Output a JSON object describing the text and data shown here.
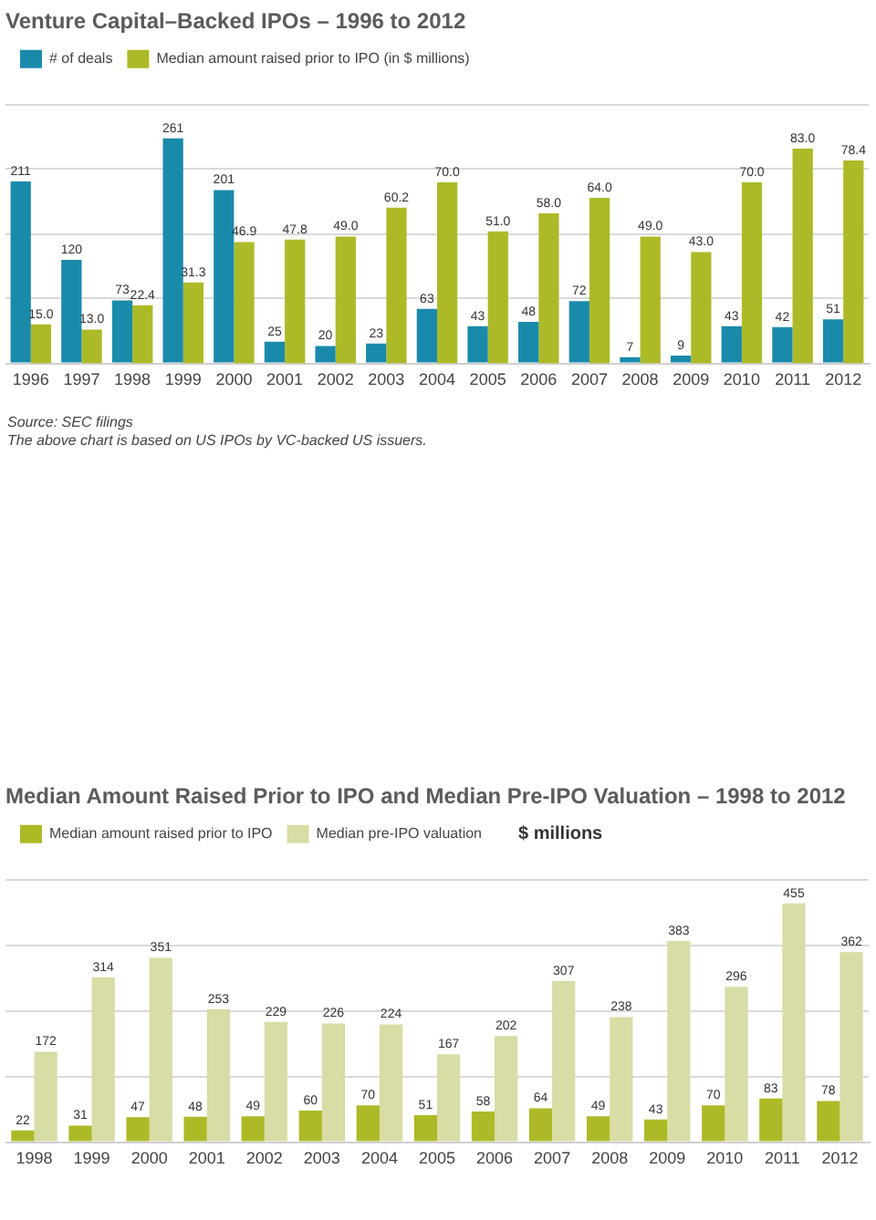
{
  "chart_data": [
    {
      "type": "bar",
      "title": "Venture Capital–Backed IPOs – 1996 to 2012",
      "categories": [
        "1996",
        "1997",
        "1998",
        "1999",
        "2000",
        "2001",
        "2002",
        "2003",
        "2004",
        "2005",
        "2006",
        "2007",
        "2008",
        "2009",
        "2010",
        "2011",
        "2012"
      ],
      "series": [
        {
          "name": "# of deals",
          "color": "#1a8aab",
          "values": [
            211,
            120,
            73,
            261,
            201,
            25,
            20,
            23,
            63,
            43,
            48,
            72,
            7,
            9,
            43,
            42,
            51
          ],
          "value_labels": [
            "211",
            "120",
            "73",
            "261",
            "201",
            "25",
            "20",
            "23",
            "63",
            "43",
            "48",
            "72",
            "7",
            "9",
            "43",
            "42",
            "51"
          ]
        },
        {
          "name": "Median amount raised prior to IPO (in $ millions)",
          "color": "#acba27",
          "axis": "y2",
          "values": [
            15.0,
            13.0,
            22.4,
            31.3,
            46.9,
            47.8,
            49.0,
            60.2,
            70.0,
            51.0,
            58.0,
            64.0,
            49.0,
            43.0,
            70.0,
            83.0,
            78.4
          ],
          "value_labels": [
            "15.0",
            "13.0",
            "22.4",
            "31.3",
            "46.9",
            "47.8",
            "49.0",
            "60.2",
            "70.0",
            "51.0",
            "58.0",
            "64.0",
            "49.0",
            "43.0",
            "70.0",
            "83.0",
            "78.4"
          ]
        }
      ],
      "ylim": [
        0,
        300
      ],
      "yticks": [
        0,
        75,
        150,
        225,
        300
      ],
      "y2lim": [
        0,
        100
      ],
      "grid": "y",
      "legend": "top left",
      "tick_labels": "x",
      "annotations": [
        "Source: SEC filings",
        "The above chart is based on US IPOs by VC-backed US issuers."
      ]
    },
    {
      "type": "bar",
      "title": "Median Amount Raised Prior to IPO and Median Pre-IPO Valuation – 1998 to 2012",
      "ylabel": "$ millions",
      "categories": [
        "1998",
        "1999",
        "2000",
        "2001",
        "2002",
        "2003",
        "2004",
        "2005",
        "2006",
        "2007",
        "2008",
        "2009",
        "2010",
        "2011",
        "2012"
      ],
      "series": [
        {
          "name": "Median amount raised prior to IPO",
          "color": "#acba27",
          "values": [
            22,
            31,
            47,
            48,
            49,
            60,
            70,
            51,
            58,
            64,
            49,
            43,
            70,
            83,
            78
          ]
        },
        {
          "name": "Median pre-IPO valuation",
          "color": "#d8dca5",
          "values": [
            172,
            314,
            351,
            253,
            229,
            226,
            224,
            167,
            202,
            307,
            238,
            383,
            296,
            455,
            362
          ]
        }
      ],
      "ylim": [
        0,
        500
      ],
      "yticks": [
        0,
        125,
        250,
        375,
        500
      ],
      "grid": "y",
      "legend": "top left",
      "tick_labels": "x",
      "data_labels": true
    }
  ]
}
